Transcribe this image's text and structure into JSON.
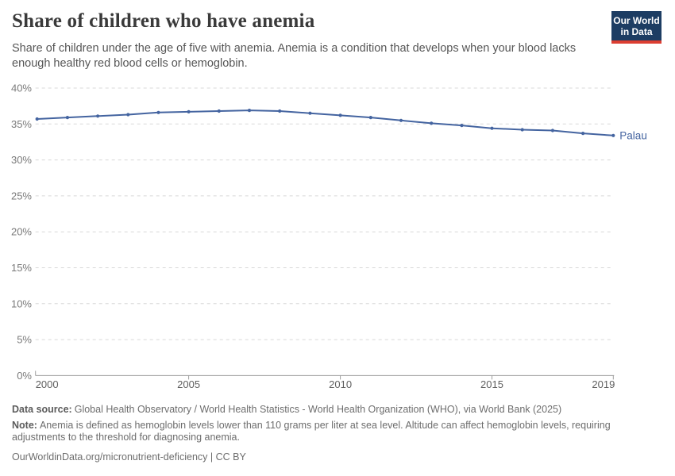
{
  "header": {
    "title": "Share of children who have anemia",
    "logo": {
      "line1": "Our World",
      "line2": "in Data",
      "bg": "#1d3d63",
      "bar": "#dc3e32"
    }
  },
  "subtitle": "Share of children under the age of five with anemia. Anemia is a condition that develops when your blood lacks enough healthy red blood cells or hemoglobin.",
  "chart_data": {
    "type": "line",
    "title": "Share of children who have anemia",
    "x": [
      2000,
      2001,
      2002,
      2003,
      2004,
      2005,
      2006,
      2007,
      2008,
      2009,
      2010,
      2011,
      2012,
      2013,
      2014,
      2015,
      2016,
      2017,
      2018,
      2019
    ],
    "series": [
      {
        "name": "Palau",
        "values": [
          35.7,
          35.9,
          36.1,
          36.3,
          36.6,
          36.7,
          36.8,
          36.9,
          36.8,
          36.5,
          36.2,
          35.9,
          35.5,
          35.1,
          34.8,
          34.4,
          34.2,
          34.1,
          33.7,
          33.4
        ]
      }
    ],
    "ylim": [
      0,
      40
    ],
    "yticks": [
      0,
      5,
      10,
      15,
      20,
      25,
      30,
      35,
      40
    ],
    "ytick_suffix": "%",
    "xticks": [
      2000,
      2005,
      2010,
      2015,
      2019
    ],
    "grid": "horizontal-dashed",
    "legend_position": "end-of-line",
    "line_color": "#4464a0",
    "grid_color": "#d8d8d8",
    "axis_color": "#9e9e9e"
  },
  "footer": {
    "source_label": "Data source:",
    "source_text": "Global Health Observatory / World Health Statistics - World Health Organization (WHO), via World Bank (2025)",
    "note_label": "Note:",
    "note_text": "Anemia is defined as hemoglobin levels lower than 110 grams per liter at sea level. Altitude can affect hemoglobin levels, requiring adjustments to the threshold for diagnosing anemia.",
    "link": "OurWorldinData.org/micronutrient-deficiency | CC BY"
  }
}
